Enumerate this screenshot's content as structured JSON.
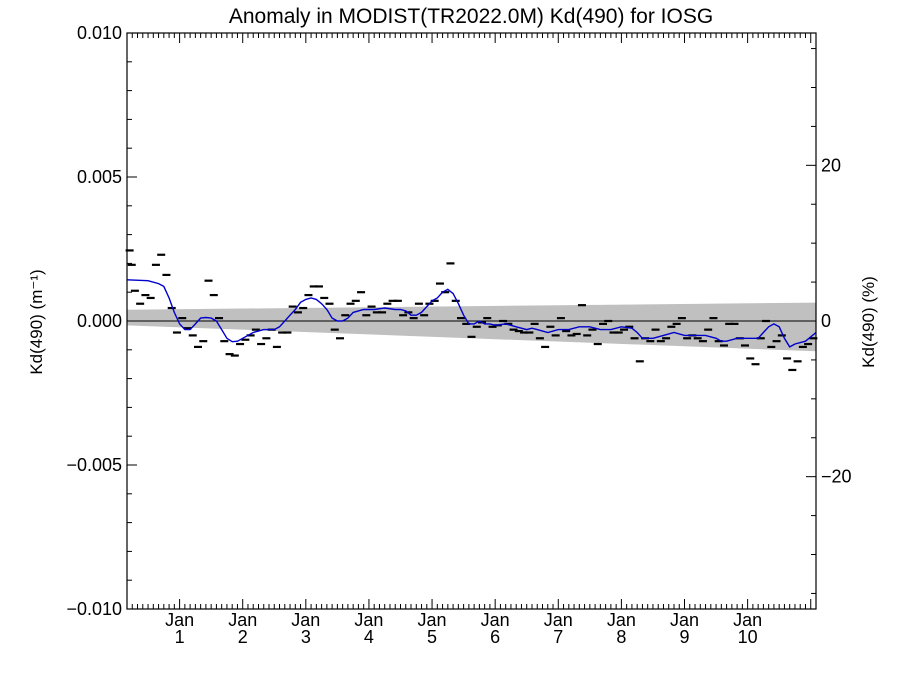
{
  "chart_data": {
    "type": "scatter",
    "title": "Anomaly in MODIST(TR2022.0M) Kd(490) for IOSG",
    "ylabel_left": "Kd(490) (m⁻¹)",
    "ylabel_right": "Kd(490) (%)",
    "ylim_left": [
      -0.01,
      0.01
    ],
    "ylim_right": [
      -37,
      37
    ],
    "yticks_left": [
      "0.010",
      "0.005",
      "0.000",
      "−0.005",
      "−0.010"
    ],
    "yticks_right": [
      "20",
      "0",
      "−20"
    ],
    "xlim_months": [
      0,
      131
    ],
    "xticks": [
      {
        "line1": "Jan",
        "line2": "1"
      },
      {
        "line1": "Jan",
        "line2": "2"
      },
      {
        "line1": "Jan",
        "line2": "3"
      },
      {
        "line1": "Jan",
        "line2": "4"
      },
      {
        "line1": "Jan",
        "line2": "5"
      },
      {
        "line1": "Jan",
        "line2": "6"
      },
      {
        "line1": "Jan",
        "line2": "7"
      },
      {
        "line1": "Jan",
        "line2": "8"
      },
      {
        "line1": "Jan",
        "line2": "9"
      },
      {
        "line1": "Jan",
        "line2": "10"
      }
    ],
    "uncertainty_band": {
      "upper": [
        [
          0,
          0.00039
        ],
        [
          131,
          0.00064
        ]
      ],
      "lower": [
        [
          0,
          -0.00015
        ],
        [
          131,
          -0.00105
        ]
      ],
      "color": "#c0c0c0"
    },
    "zero_line": 0,
    "series": [
      {
        "kind": "monthly-anomaly-markers",
        "color": "#000000",
        "points": [
          [
            0.5,
            0.00245
          ],
          [
            0.9,
            0.00195
          ],
          [
            1.5,
            0.00105
          ],
          [
            2.5,
            0.0006
          ],
          [
            3.5,
            0.0009
          ],
          [
            4.5,
            0.0008
          ],
          [
            5.5,
            0.00195
          ],
          [
            6.5,
            0.0023
          ],
          [
            7.5,
            0.0016
          ],
          [
            8.5,
            0.00045
          ],
          [
            9.5,
            -0.0004
          ],
          [
            10.5,
            0.0001
          ],
          [
            11.5,
            -0.00025
          ],
          [
            12.5,
            -0.0005
          ],
          [
            13.5,
            -0.0009
          ],
          [
            14.5,
            -0.0007
          ],
          [
            15.5,
            0.0014
          ],
          [
            16.5,
            0.0009
          ],
          [
            17.5,
            0.0001
          ],
          [
            18.5,
            -0.0007
          ],
          [
            19.5,
            -0.00115
          ],
          [
            20.5,
            -0.0012
          ],
          [
            21.5,
            -0.0008
          ],
          [
            22.5,
            -0.00065
          ],
          [
            23.5,
            -0.0005
          ],
          [
            24.5,
            -0.0003
          ],
          [
            25.5,
            -0.0008
          ],
          [
            26.5,
            -0.0006
          ],
          [
            27.5,
            -0.0003
          ],
          [
            28.5,
            -0.0009
          ],
          [
            29.5,
            -0.0004
          ],
          [
            30.5,
            -0.0004
          ],
          [
            31.5,
            0.0005
          ],
          [
            32.5,
            0.0003
          ],
          [
            33.5,
            0.00045
          ],
          [
            34.5,
            0.0009
          ],
          [
            35.5,
            0.0012
          ],
          [
            36.5,
            0.0012
          ],
          [
            37.5,
            0.0008
          ],
          [
            38.5,
            0.0006
          ],
          [
            39.5,
            -0.0003
          ],
          [
            40.5,
            -0.0006
          ],
          [
            41.5,
            0.0002
          ],
          [
            42.5,
            0.0006
          ],
          [
            43.5,
            0.0007
          ],
          [
            44.5,
            0.001
          ],
          [
            45.5,
            0.0002
          ],
          [
            46.5,
            0.0005
          ],
          [
            47.5,
            0.0003
          ],
          [
            48.5,
            0.0003
          ],
          [
            49.5,
            0.0006
          ],
          [
            50.5,
            0.0007
          ],
          [
            51.5,
            0.0007
          ],
          [
            52.5,
            0.0002
          ],
          [
            53.5,
            0.0003
          ],
          [
            54.5,
            0.0001
          ],
          [
            55.5,
            0.0006
          ],
          [
            56.5,
            0.0002
          ],
          [
            57.5,
            0.0006
          ],
          [
            58.5,
            0.0007
          ],
          [
            59.5,
            0.0013
          ],
          [
            60.5,
            0.001
          ],
          [
            61.5,
            0.002
          ],
          [
            62.5,
            0.0007
          ],
          [
            63.5,
            0.0001
          ],
          [
            64.5,
            -0.0001
          ],
          [
            65.5,
            -0.00055
          ],
          [
            66.5,
            -0.0002
          ],
          [
            67.5,
            -5e-05
          ],
          [
            68.5,
            0.0001
          ],
          [
            69.5,
            -0.0002
          ],
          [
            70.5,
            -0.00015
          ],
          [
            71.5,
            0.0
          ],
          [
            72.5,
            -0.0001
          ],
          [
            73.5,
            -0.0003
          ],
          [
            74.5,
            -0.00035
          ],
          [
            75.5,
            -0.0004
          ],
          [
            76.5,
            -0.0004
          ],
          [
            77.5,
            -0.0001
          ],
          [
            78.5,
            -0.0006
          ],
          [
            79.5,
            -0.0009
          ],
          [
            80.5,
            -0.0002
          ],
          [
            81.5,
            -0.0005
          ],
          [
            82.5,
            0.0001
          ],
          [
            83.5,
            -0.00035
          ],
          [
            84.5,
            -0.0005
          ],
          [
            85.5,
            -0.00045
          ],
          [
            86.5,
            0.00055
          ],
          [
            87.5,
            -0.0005
          ],
          [
            88.5,
            -0.0003
          ],
          [
            89.5,
            -0.0008
          ],
          [
            90.5,
            -0.0001
          ],
          [
            91.5,
            0.0
          ],
          [
            92.5,
            -0.0004
          ],
          [
            93.5,
            -0.0004
          ],
          [
            94.5,
            -0.0003
          ],
          [
            95.5,
            -0.0002
          ],
          [
            96.5,
            -0.0006
          ],
          [
            97.5,
            -0.0014
          ],
          [
            98.5,
            -0.0006
          ],
          [
            99.5,
            -0.0007
          ],
          [
            100.5,
            -0.0003
          ],
          [
            101.5,
            -0.0007
          ],
          [
            102.5,
            -0.0006
          ],
          [
            103.5,
            -0.0002
          ],
          [
            104.5,
            -0.0001
          ],
          [
            105.5,
            0.0001
          ],
          [
            106.5,
            -0.0006
          ],
          [
            107.5,
            -0.0005
          ],
          [
            108.5,
            -0.0006
          ],
          [
            109.5,
            -0.0007
          ],
          [
            110.5,
            -0.0003
          ],
          [
            111.5,
            0.0001
          ],
          [
            112.5,
            -0.0007
          ],
          [
            113.5,
            -0.00085
          ],
          [
            114.5,
            -0.0001
          ],
          [
            115.5,
            -0.0001
          ],
          [
            116.5,
            -0.0006
          ],
          [
            117.5,
            -0.00085
          ],
          [
            118.5,
            -0.0013
          ],
          [
            119.5,
            -0.0015
          ],
          [
            120.5,
            -0.0006
          ],
          [
            121.5,
            0.0
          ],
          [
            122.5,
            -0.0009
          ],
          [
            123.5,
            -0.0007
          ],
          [
            124.5,
            -0.0005
          ],
          [
            125.5,
            -0.0013
          ],
          [
            126.5,
            -0.0017
          ],
          [
            127.5,
            -0.0014
          ],
          [
            128.5,
            -0.0009
          ],
          [
            129.5,
            -0.0008
          ],
          [
            130.5,
            -0.0006
          ]
        ]
      },
      {
        "kind": "smoothed-line",
        "color": "#0000cc",
        "points": [
          [
            0,
            0.00143
          ],
          [
            4,
            0.0014
          ],
          [
            6,
            0.0013
          ],
          [
            7,
            0.0012
          ],
          [
            8,
            0.0008
          ],
          [
            9,
            0.0003
          ],
          [
            10,
            -0.0001
          ],
          [
            11,
            -0.0003
          ],
          [
            12,
            -0.0003
          ],
          [
            13,
            -0.0001
          ],
          [
            14,
            0.0001
          ],
          [
            15,
            0.00012
          ],
          [
            16,
            0.0001
          ],
          [
            17,
            0.0
          ],
          [
            18,
            -0.0003
          ],
          [
            19,
            -0.0006
          ],
          [
            20,
            -0.00072
          ],
          [
            21,
            -0.0007
          ],
          [
            22,
            -0.0006
          ],
          [
            24,
            -0.0004
          ],
          [
            26,
            -0.0003
          ],
          [
            28,
            -0.0003
          ],
          [
            29,
            -0.0002
          ],
          [
            30,
            0.0
          ],
          [
            31,
            0.0002
          ],
          [
            32,
            0.0004
          ],
          [
            33,
            0.00065
          ],
          [
            34,
            0.00075
          ],
          [
            35,
            0.0008
          ],
          [
            36,
            0.00075
          ],
          [
            37,
            0.0006
          ],
          [
            38,
            0.0004
          ],
          [
            39,
            0.0001
          ],
          [
            40,
            0.0
          ],
          [
            41,
            0.0
          ],
          [
            42,
            0.0001
          ],
          [
            43,
            0.0003
          ],
          [
            45,
            0.0004
          ],
          [
            47,
            0.0004
          ],
          [
            49,
            0.00045
          ],
          [
            51,
            0.0004
          ],
          [
            52,
            0.0004
          ],
          [
            53,
            0.00035
          ],
          [
            54,
            0.0002
          ],
          [
            55,
            0.0002
          ],
          [
            56,
            0.0003
          ],
          [
            57,
            0.0005
          ],
          [
            58,
            0.0007
          ],
          [
            59,
            0.0008
          ],
          [
            60,
            0.001
          ],
          [
            61,
            0.0011
          ],
          [
            62,
            0.00095
          ],
          [
            63,
            0.0006
          ],
          [
            64,
            0.0002
          ],
          [
            65,
            -0.0001
          ],
          [
            66,
            -0.0001
          ],
          [
            67,
            0.0
          ],
          [
            68,
            -0.0001
          ],
          [
            69,
            -0.0001
          ],
          [
            70,
            -0.00015
          ],
          [
            72,
            -0.0001
          ],
          [
            74,
            -0.0002
          ],
          [
            76,
            -0.0003
          ],
          [
            77,
            -0.00025
          ],
          [
            78,
            -0.0003
          ],
          [
            80,
            -0.0004
          ],
          [
            82,
            -0.0003
          ],
          [
            84,
            -0.0003
          ],
          [
            86,
            -0.0002
          ],
          [
            88,
            -0.0002
          ],
          [
            90,
            -0.0003
          ],
          [
            92,
            -0.0003
          ],
          [
            94,
            -0.0002
          ],
          [
            96,
            -0.00025
          ],
          [
            97,
            -0.0004
          ],
          [
            98,
            -0.0006
          ],
          [
            100,
            -0.0006
          ],
          [
            102,
            -0.0005
          ],
          [
            104,
            -0.0004
          ],
          [
            106,
            -0.0005
          ],
          [
            108,
            -0.0005
          ],
          [
            110,
            -0.0005
          ],
          [
            112,
            -0.0006
          ],
          [
            113,
            -0.0007
          ],
          [
            114,
            -0.0007
          ],
          [
            116,
            -0.0006
          ],
          [
            118,
            -0.0006
          ],
          [
            120,
            -0.0006
          ],
          [
            121,
            -0.0004
          ],
          [
            122,
            -0.0002
          ],
          [
            123,
            -0.0001
          ],
          [
            124,
            -0.0002
          ],
          [
            125,
            -0.0006
          ],
          [
            126,
            -0.0009
          ],
          [
            127,
            -0.0008
          ],
          [
            129,
            -0.0007
          ],
          [
            131,
            -0.0004
          ]
        ]
      }
    ]
  }
}
